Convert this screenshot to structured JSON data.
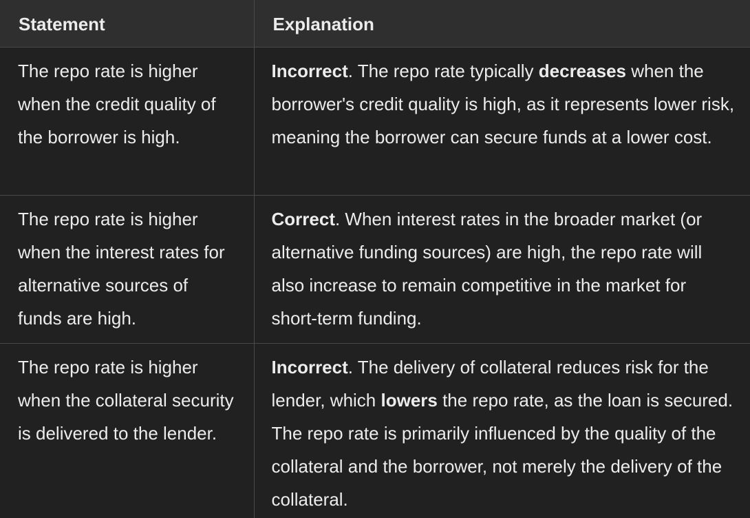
{
  "table": {
    "headers": {
      "statement": "Statement",
      "explanation": "Explanation"
    },
    "rows": [
      {
        "statement": "The repo rate is higher when the credit quality of the borrower is high.",
        "verdict": "Incorrect",
        "exp_a": ". The repo rate typically ",
        "exp_bold": "decreases",
        "exp_b": " when the borrower's credit quality is high, as it represents lower risk, meaning the borrower can secure funds at a lower cost."
      },
      {
        "statement": "The repo rate is higher when the interest rates for alternative sources of funds are high.",
        "verdict": "Correct",
        "exp_a": ". When interest rates in the broader market (or alternative funding sources) are high, the repo rate will also increase to remain competitive in the market for short-term funding."
      },
      {
        "statement": "The repo rate is higher when the collateral security is delivered to the lender.",
        "verdict": "Incorrect",
        "exp_a": ". The delivery of collateral reduces risk for the lender, which ",
        "exp_bold": "lowers",
        "exp_b": " the repo rate, as the loan is secured. The repo rate is primarily influenced by the quality of the collateral and the borrower, not merely the delivery of the collateral."
      }
    ]
  }
}
